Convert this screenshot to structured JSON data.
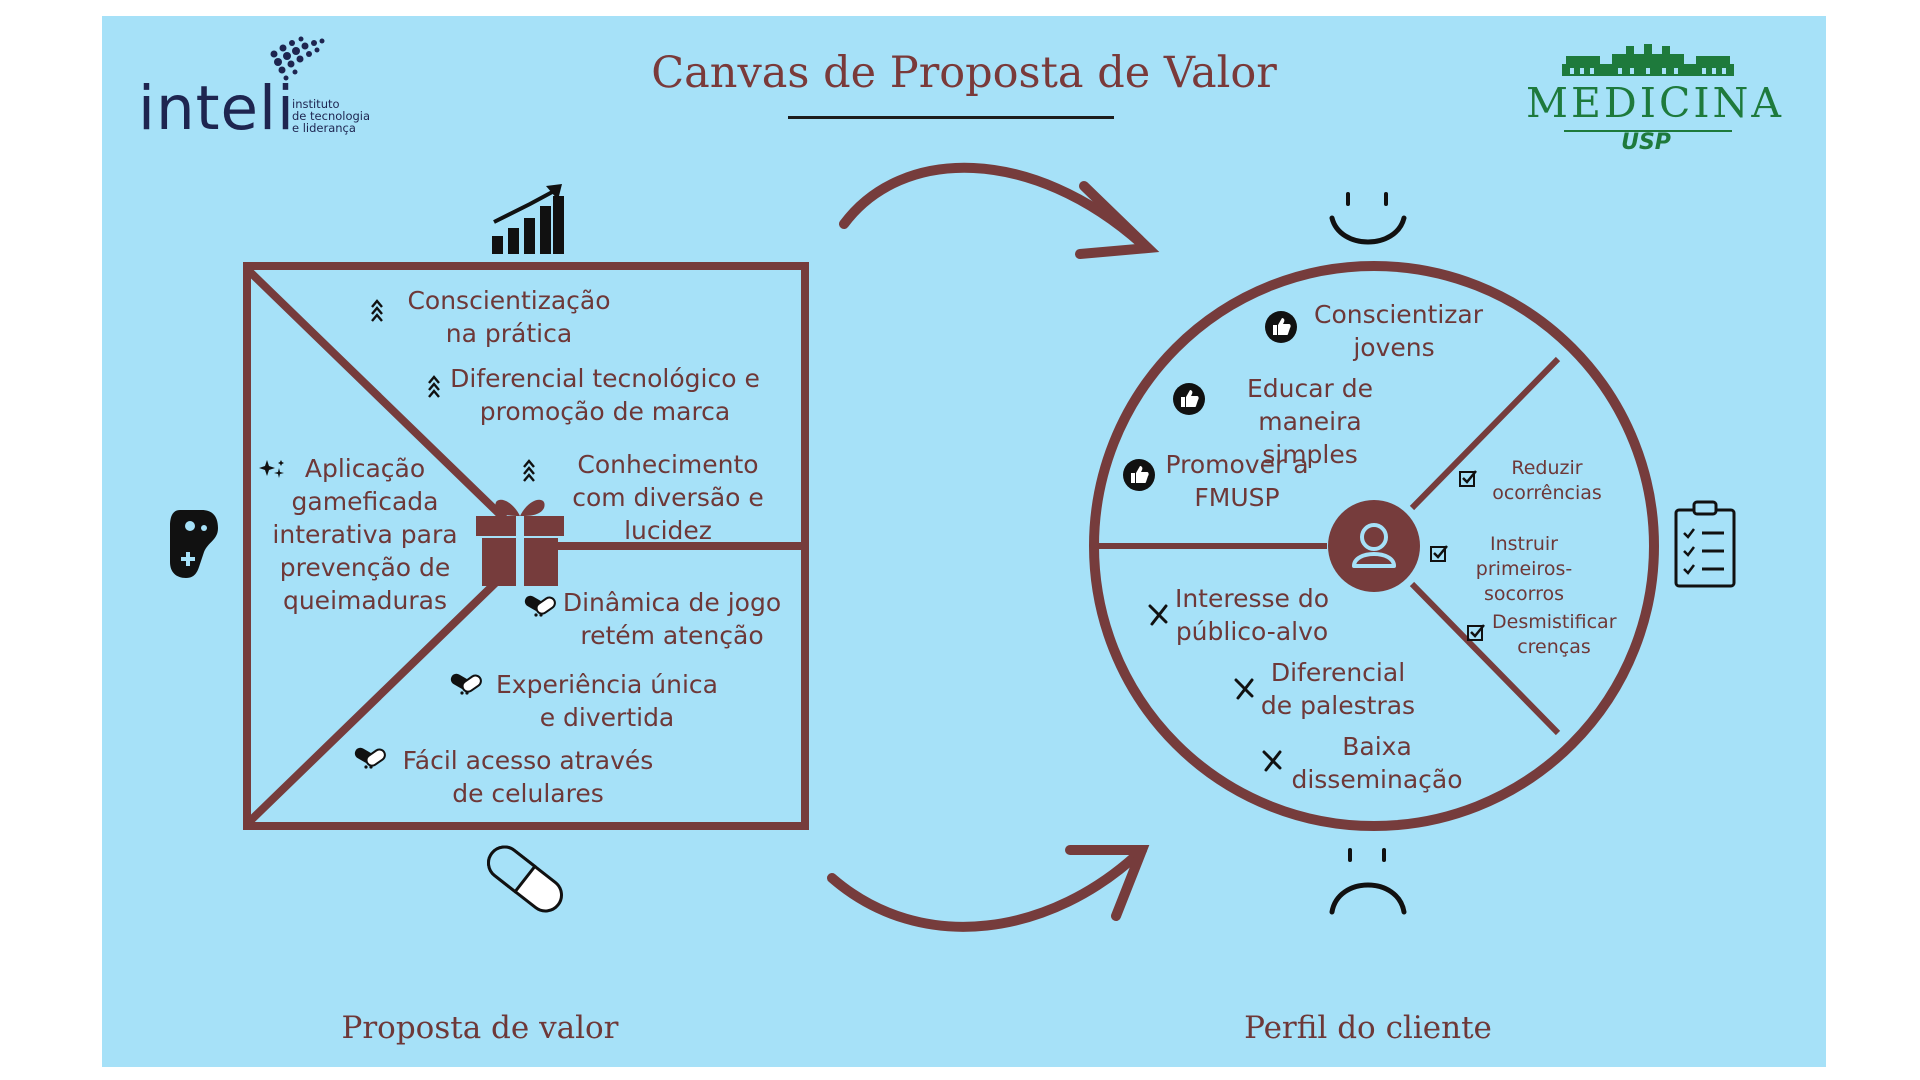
{
  "title": "Canvas de Proposta de Valor",
  "logos": {
    "inteli": {
      "name": "inteli",
      "sub": [
        "instituto",
        "de tecnologia",
        "e liderança"
      ]
    },
    "medicina": {
      "name": "MEDICINA",
      "sub": "USP"
    }
  },
  "value_proposition": {
    "caption": "Proposta de valor",
    "product": "Aplicação gameficada interativa para prevenção de queimaduras",
    "gain_creators": [
      "Conscientização na prática",
      "Diferencial tecnológico e promoção de marca",
      "Conhecimento com diversão e lucidez"
    ],
    "pain_relievers": [
      "Dinâmica de jogo retém atenção",
      "Experiência única e divertida",
      "Fácil acesso através de celulares"
    ]
  },
  "customer_profile": {
    "caption": "Perfil do cliente",
    "gains": [
      "Conscientizar jovens",
      "Educar de maneira simples",
      "Promover a FMUSP"
    ],
    "jobs": [
      "Reduzir ocorrências",
      "Instruir primeiros-socorros",
      "Desmistificar crenças"
    ],
    "pains": [
      "Interesse do público-alvo",
      "Diferencial de palestras",
      "Baixa disseminação"
    ]
  },
  "icons": {
    "gains": "chart-up-icon",
    "products": "gamepad-icon",
    "pain_relievers": "pill-icon",
    "gift": "gift-icon",
    "customer_gains": "smiley-icon",
    "customer_pains": "sad-face-icon",
    "customer_jobs": "clipboard-icon",
    "customer": "user-icon"
  },
  "colors": {
    "background": "#a6e1f8",
    "accent": "#763c3c",
    "text": "#6e3838",
    "medicina": "#1e7a3c",
    "inteli": "#1e2550"
  }
}
